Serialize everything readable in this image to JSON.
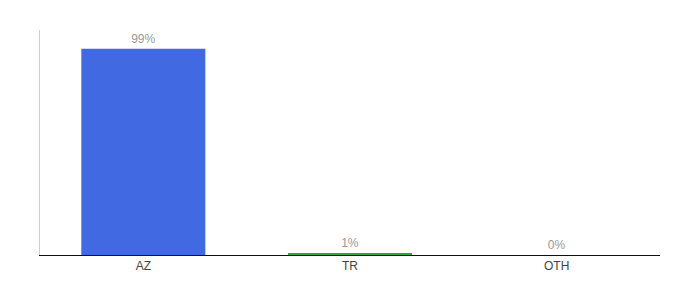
{
  "chart_data": {
    "type": "bar",
    "categories": [
      "AZ",
      "TR",
      "OTH"
    ],
    "values": [
      99,
      1,
      0
    ],
    "value_labels": [
      "99%",
      "1%",
      "0%"
    ],
    "colors": [
      "#4169e1",
      "#22b033",
      "#4169e1"
    ],
    "ylim": [
      0,
      108
    ],
    "grid": false,
    "data_labels": true,
    "tick_labels": "x"
  }
}
